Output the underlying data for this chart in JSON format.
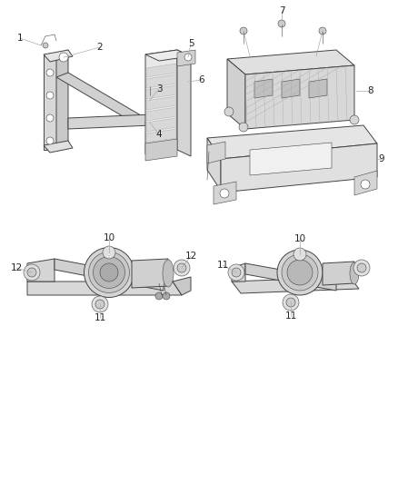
{
  "bg_color": "#ffffff",
  "line_color": "#444444",
  "fig_width": 4.38,
  "fig_height": 5.33,
  "dpi": 100,
  "label_fontsize": 7.5,
  "thin_line_color": "#777777",
  "callout_line_color": "#999999"
}
